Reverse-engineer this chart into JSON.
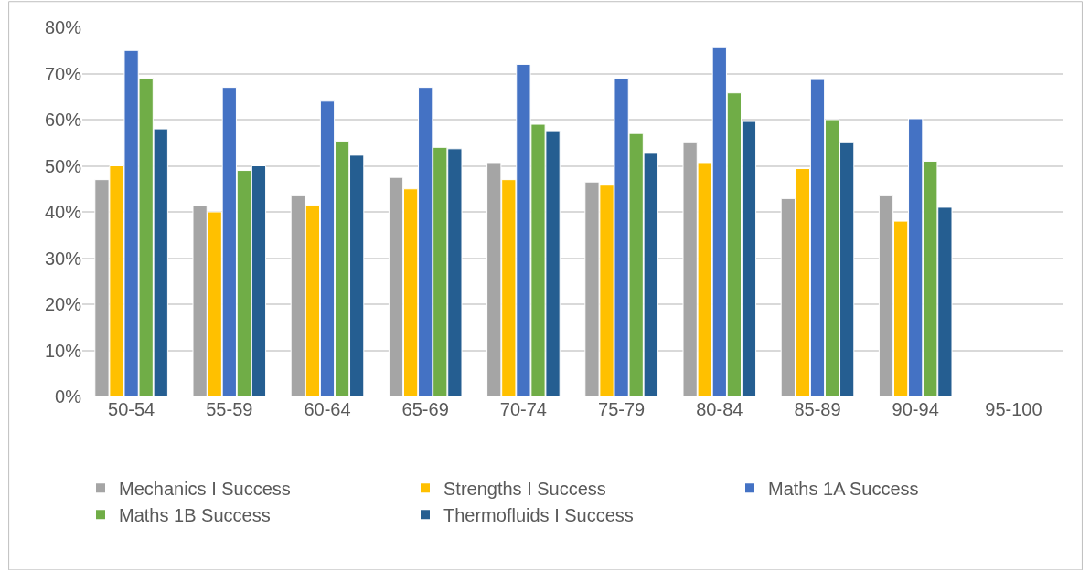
{
  "chart_data": {
    "type": "bar",
    "categories": [
      "50-54",
      "55-59",
      "60-64",
      "65-69",
      "70-74",
      "75-79",
      "80-84",
      "85-89",
      "90-94",
      "95-100"
    ],
    "series": [
      {
        "name": "Mechanics I Success",
        "color": "#a5a5a5",
        "values": [
          47,
          41.3,
          43.5,
          47.5,
          50.7,
          46.5,
          55,
          42.9,
          43.5,
          null
        ]
      },
      {
        "name": "Strengths I Success",
        "color": "#ffc000",
        "values": [
          50,
          40,
          41.5,
          45,
          47,
          45.8,
          50.7,
          49.4,
          38,
          null
        ]
      },
      {
        "name": "Maths 1A Success",
        "color": "#4472c4",
        "values": [
          75,
          67,
          64,
          67,
          72,
          69,
          75.6,
          68.7,
          60.2,
          null
        ]
      },
      {
        "name": "Maths 1B Success",
        "color": "#70ad47",
        "values": [
          69,
          49,
          55.3,
          54,
          59,
          57,
          65.8,
          60,
          51,
          null
        ]
      },
      {
        "name": "Thermofluids I Success",
        "color": "#255e91",
        "values": [
          58,
          50,
          52.3,
          53.7,
          57.6,
          52.7,
          59.6,
          55,
          41,
          null
        ]
      }
    ],
    "ylim": [
      0,
      80
    ],
    "yticks": [
      {
        "value": 0,
        "label": "0%"
      },
      {
        "value": 10,
        "label": "10%"
      },
      {
        "value": 20,
        "label": "20%"
      },
      {
        "value": 30,
        "label": "30%"
      },
      {
        "value": 40,
        "label": "40%"
      },
      {
        "value": 50,
        "label": "50%"
      },
      {
        "value": 60,
        "label": "60%"
      },
      {
        "value": 70,
        "label": "70%"
      },
      {
        "value": 80,
        "label": "80%"
      }
    ],
    "grid": "y",
    "legend": "bottom"
  }
}
